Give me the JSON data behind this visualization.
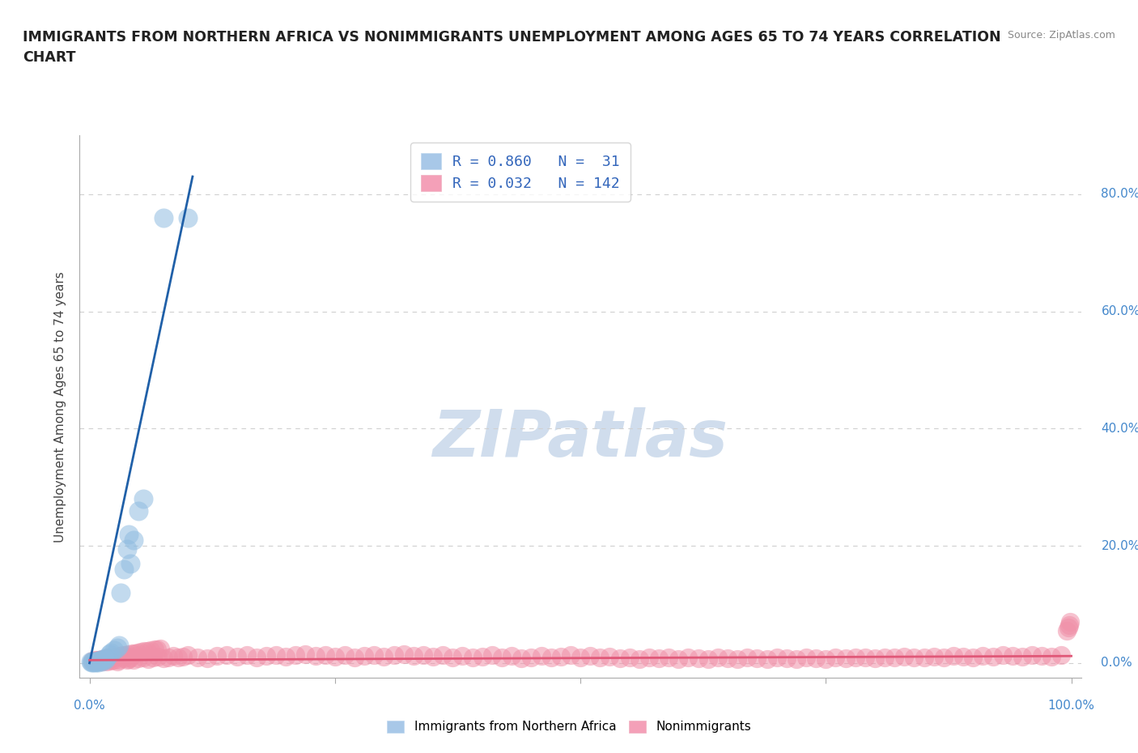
{
  "title": "IMMIGRANTS FROM NORTHERN AFRICA VS NONIMMIGRANTS UNEMPLOYMENT AMONG AGES 65 TO 74 YEARS CORRELATION\nCHART",
  "source_text": "Source: ZipAtlas.com",
  "ylabel": "Unemployment Among Ages 65 to 74 years",
  "ytick_labels": [
    "0.0%",
    "20.0%",
    "40.0%",
    "60.0%",
    "80.0%"
  ],
  "ytick_values": [
    0.0,
    0.2,
    0.4,
    0.6,
    0.8
  ],
  "xlim": [
    -0.01,
    1.01
  ],
  "ylim": [
    -0.025,
    0.9
  ],
  "legend_items": [
    {
      "label": "R = 0.860   N =  31",
      "color": "#a8c8e8"
    },
    {
      "label": "R = 0.032   N = 142",
      "color": "#f4a0b8"
    }
  ],
  "watermark": "ZIPatlas",
  "watermark_color": "#c8d8ea",
  "blue_color": "#90bce0",
  "pink_color": "#f090a8",
  "blue_line_color": "#2060a8",
  "pink_line_color": "#e05878",
  "background_color": "#ffffff",
  "grid_color": "#d0d0d0",
  "blue_scatter_x": [
    0.001,
    0.002,
    0.003,
    0.004,
    0.005,
    0.006,
    0.007,
    0.008,
    0.009,
    0.01,
    0.011,
    0.012,
    0.013,
    0.015,
    0.016,
    0.018,
    0.02,
    0.022,
    0.025,
    0.028,
    0.03,
    0.032,
    0.035,
    0.038,
    0.04,
    0.042,
    0.045,
    0.05,
    0.055,
    0.075,
    0.1
  ],
  "blue_scatter_y": [
    0.002,
    0.001,
    0.003,
    0.001,
    0.002,
    0.001,
    0.002,
    0.003,
    0.001,
    0.004,
    0.005,
    0.006,
    0.003,
    0.007,
    0.005,
    0.01,
    0.015,
    0.018,
    0.022,
    0.026,
    0.03,
    0.12,
    0.16,
    0.195,
    0.22,
    0.17,
    0.21,
    0.26,
    0.28,
    0.76,
    0.76
  ],
  "pink_scatter_x": [
    0.005,
    0.008,
    0.01,
    0.012,
    0.015,
    0.018,
    0.02,
    0.022,
    0.025,
    0.028,
    0.03,
    0.035,
    0.038,
    0.04,
    0.042,
    0.045,
    0.05,
    0.055,
    0.06,
    0.065,
    0.07,
    0.075,
    0.08,
    0.085,
    0.09,
    0.095,
    0.1,
    0.11,
    0.12,
    0.13,
    0.14,
    0.15,
    0.16,
    0.17,
    0.18,
    0.19,
    0.2,
    0.21,
    0.22,
    0.23,
    0.24,
    0.25,
    0.26,
    0.27,
    0.28,
    0.29,
    0.3,
    0.31,
    0.32,
    0.33,
    0.34,
    0.35,
    0.36,
    0.37,
    0.38,
    0.39,
    0.4,
    0.41,
    0.42,
    0.43,
    0.44,
    0.45,
    0.46,
    0.47,
    0.48,
    0.49,
    0.5,
    0.51,
    0.52,
    0.53,
    0.54,
    0.55,
    0.56,
    0.57,
    0.58,
    0.59,
    0.6,
    0.61,
    0.62,
    0.63,
    0.64,
    0.65,
    0.66,
    0.67,
    0.68,
    0.69,
    0.7,
    0.71,
    0.72,
    0.73,
    0.74,
    0.75,
    0.76,
    0.77,
    0.78,
    0.79,
    0.8,
    0.81,
    0.82,
    0.83,
    0.84,
    0.85,
    0.86,
    0.87,
    0.88,
    0.89,
    0.9,
    0.91,
    0.92,
    0.93,
    0.94,
    0.95,
    0.96,
    0.97,
    0.98,
    0.99,
    0.995,
    0.997,
    0.998,
    0.999,
    0.003,
    0.006,
    0.009,
    0.013,
    0.016,
    0.019,
    0.023,
    0.026,
    0.029,
    0.033,
    0.036,
    0.039,
    0.043,
    0.046,
    0.049,
    0.052,
    0.056,
    0.059,
    0.062,
    0.066,
    0.069,
    0.072
  ],
  "pink_scatter_y": [
    0.004,
    0.003,
    0.005,
    0.002,
    0.004,
    0.003,
    0.006,
    0.004,
    0.005,
    0.003,
    0.006,
    0.008,
    0.005,
    0.007,
    0.009,
    0.006,
    0.008,
    0.01,
    0.007,
    0.009,
    0.011,
    0.008,
    0.01,
    0.012,
    0.009,
    0.011,
    0.013,
    0.01,
    0.008,
    0.012,
    0.014,
    0.011,
    0.013,
    0.01,
    0.012,
    0.014,
    0.011,
    0.013,
    0.015,
    0.012,
    0.014,
    0.011,
    0.013,
    0.01,
    0.012,
    0.014,
    0.011,
    0.013,
    0.015,
    0.012,
    0.014,
    0.011,
    0.013,
    0.01,
    0.012,
    0.009,
    0.011,
    0.013,
    0.01,
    0.012,
    0.008,
    0.01,
    0.012,
    0.009,
    0.011,
    0.013,
    0.01,
    0.012,
    0.009,
    0.011,
    0.008,
    0.01,
    0.007,
    0.009,
    0.008,
    0.01,
    0.007,
    0.009,
    0.008,
    0.007,
    0.009,
    0.008,
    0.007,
    0.009,
    0.008,
    0.007,
    0.009,
    0.008,
    0.007,
    0.009,
    0.008,
    0.007,
    0.009,
    0.008,
    0.01,
    0.009,
    0.008,
    0.01,
    0.009,
    0.011,
    0.01,
    0.009,
    0.011,
    0.01,
    0.012,
    0.011,
    0.01,
    0.012,
    0.011,
    0.013,
    0.012,
    0.011,
    0.013,
    0.012,
    0.011,
    0.013,
    0.055,
    0.06,
    0.065,
    0.07,
    0.004,
    0.005,
    0.006,
    0.007,
    0.008,
    0.009,
    0.01,
    0.011,
    0.012,
    0.013,
    0.014,
    0.015,
    0.016,
    0.017,
    0.018,
    0.019,
    0.02,
    0.021,
    0.022,
    0.023,
    0.024,
    0.025
  ],
  "blue_trendline_x": [
    0.0,
    0.105
  ],
  "blue_trendline_y": [
    0.0,
    0.83
  ],
  "pink_trendline_x": [
    0.0,
    1.0
  ],
  "pink_trendline_y": [
    0.005,
    0.012
  ]
}
